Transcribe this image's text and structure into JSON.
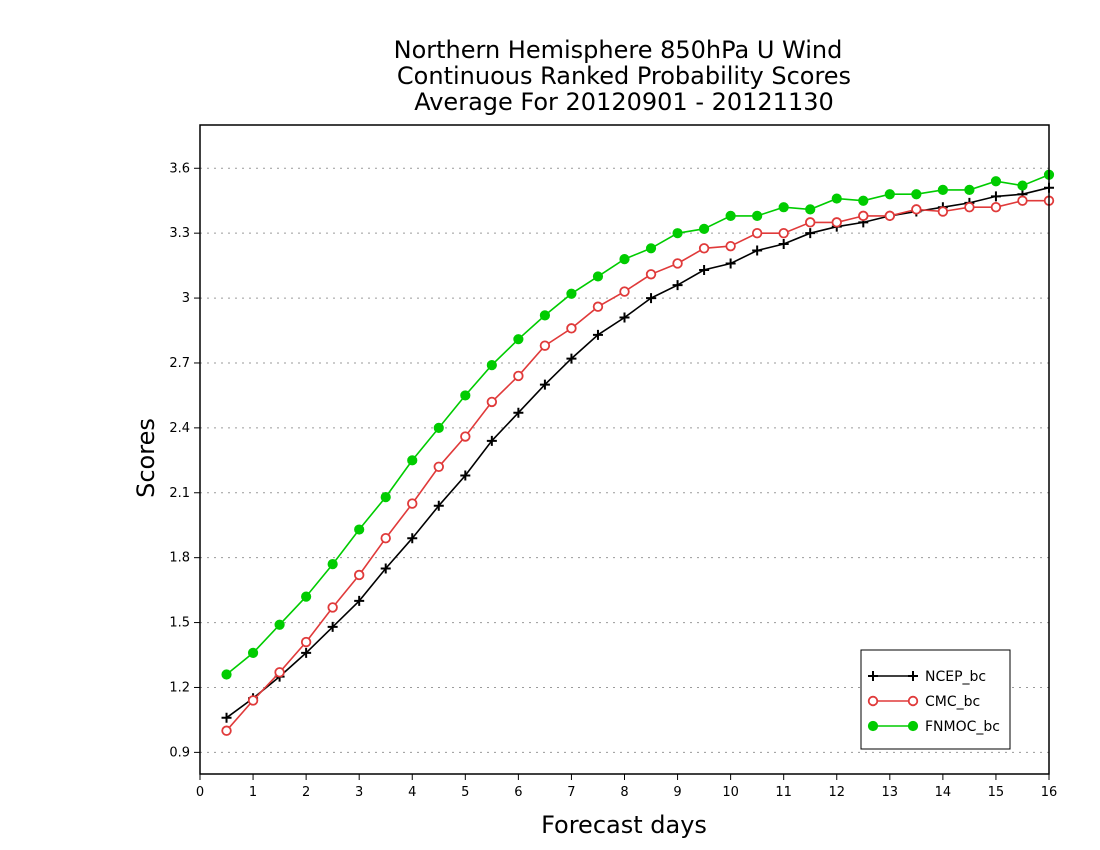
{
  "chart_data": {
    "type": "line",
    "title_lines": [
      "Northern Hemisphere 850hPa U Wind",
      "Continuous Ranked Probability Scores",
      "Average For 20120901 - 20121130"
    ],
    "xlabel": "Forecast days",
    "ylabel": "Scores",
    "xlim": [
      0,
      16
    ],
    "ylim": [
      0.8,
      3.8
    ],
    "xticks": [
      "0",
      "1",
      "2",
      "3",
      "4",
      "5",
      "6",
      "7",
      "8",
      "9",
      "10",
      "11",
      "12",
      "13",
      "14",
      "15",
      "16"
    ],
    "yticks": [
      "0.9",
      "1.2",
      "1.5",
      "1.8",
      "2.1",
      "2.4",
      "2.7",
      "3",
      "3.3",
      "3.6"
    ],
    "grid": "horizontal dotted",
    "legend_position": "bottom-right",
    "x": [
      0.5,
      1,
      1.5,
      2,
      2.5,
      3,
      3.5,
      4,
      4.5,
      5,
      5.5,
      6,
      6.5,
      7,
      7.5,
      8,
      8.5,
      9,
      9.5,
      10,
      10.5,
      11,
      11.5,
      12,
      12.5,
      13,
      13.5,
      14,
      14.5,
      15,
      15.5,
      16
    ],
    "series": [
      {
        "name": "NCEP_bc",
        "color": "#000000",
        "marker": "plus",
        "values": [
          1.06,
          1.15,
          1.25,
          1.36,
          1.48,
          1.6,
          1.75,
          1.89,
          2.04,
          2.18,
          2.34,
          2.47,
          2.6,
          2.72,
          2.83,
          2.91,
          3.0,
          3.06,
          3.13,
          3.16,
          3.22,
          3.25,
          3.3,
          3.33,
          3.35,
          3.38,
          3.4,
          3.42,
          3.44,
          3.47,
          3.48,
          3.51
        ]
      },
      {
        "name": "CMC_bc",
        "color": "#e03a3a",
        "marker": "open-circle",
        "values": [
          1.0,
          1.14,
          1.27,
          1.41,
          1.57,
          1.72,
          1.89,
          2.05,
          2.22,
          2.36,
          2.52,
          2.64,
          2.78,
          2.86,
          2.96,
          3.03,
          3.11,
          3.16,
          3.23,
          3.24,
          3.3,
          3.3,
          3.35,
          3.35,
          3.38,
          3.38,
          3.41,
          3.4,
          3.42,
          3.42,
          3.45,
          3.45
        ]
      },
      {
        "name": "FNMOC_bc",
        "color": "#00cc00",
        "marker": "filled-circle",
        "values": [
          1.26,
          1.36,
          1.49,
          1.62,
          1.77,
          1.93,
          2.08,
          2.25,
          2.4,
          2.55,
          2.69,
          2.81,
          2.92,
          3.02,
          3.1,
          3.18,
          3.23,
          3.3,
          3.32,
          3.38,
          3.38,
          3.42,
          3.41,
          3.46,
          3.45,
          3.48,
          3.48,
          3.5,
          3.5,
          3.54,
          3.52,
          3.57
        ]
      }
    ]
  }
}
